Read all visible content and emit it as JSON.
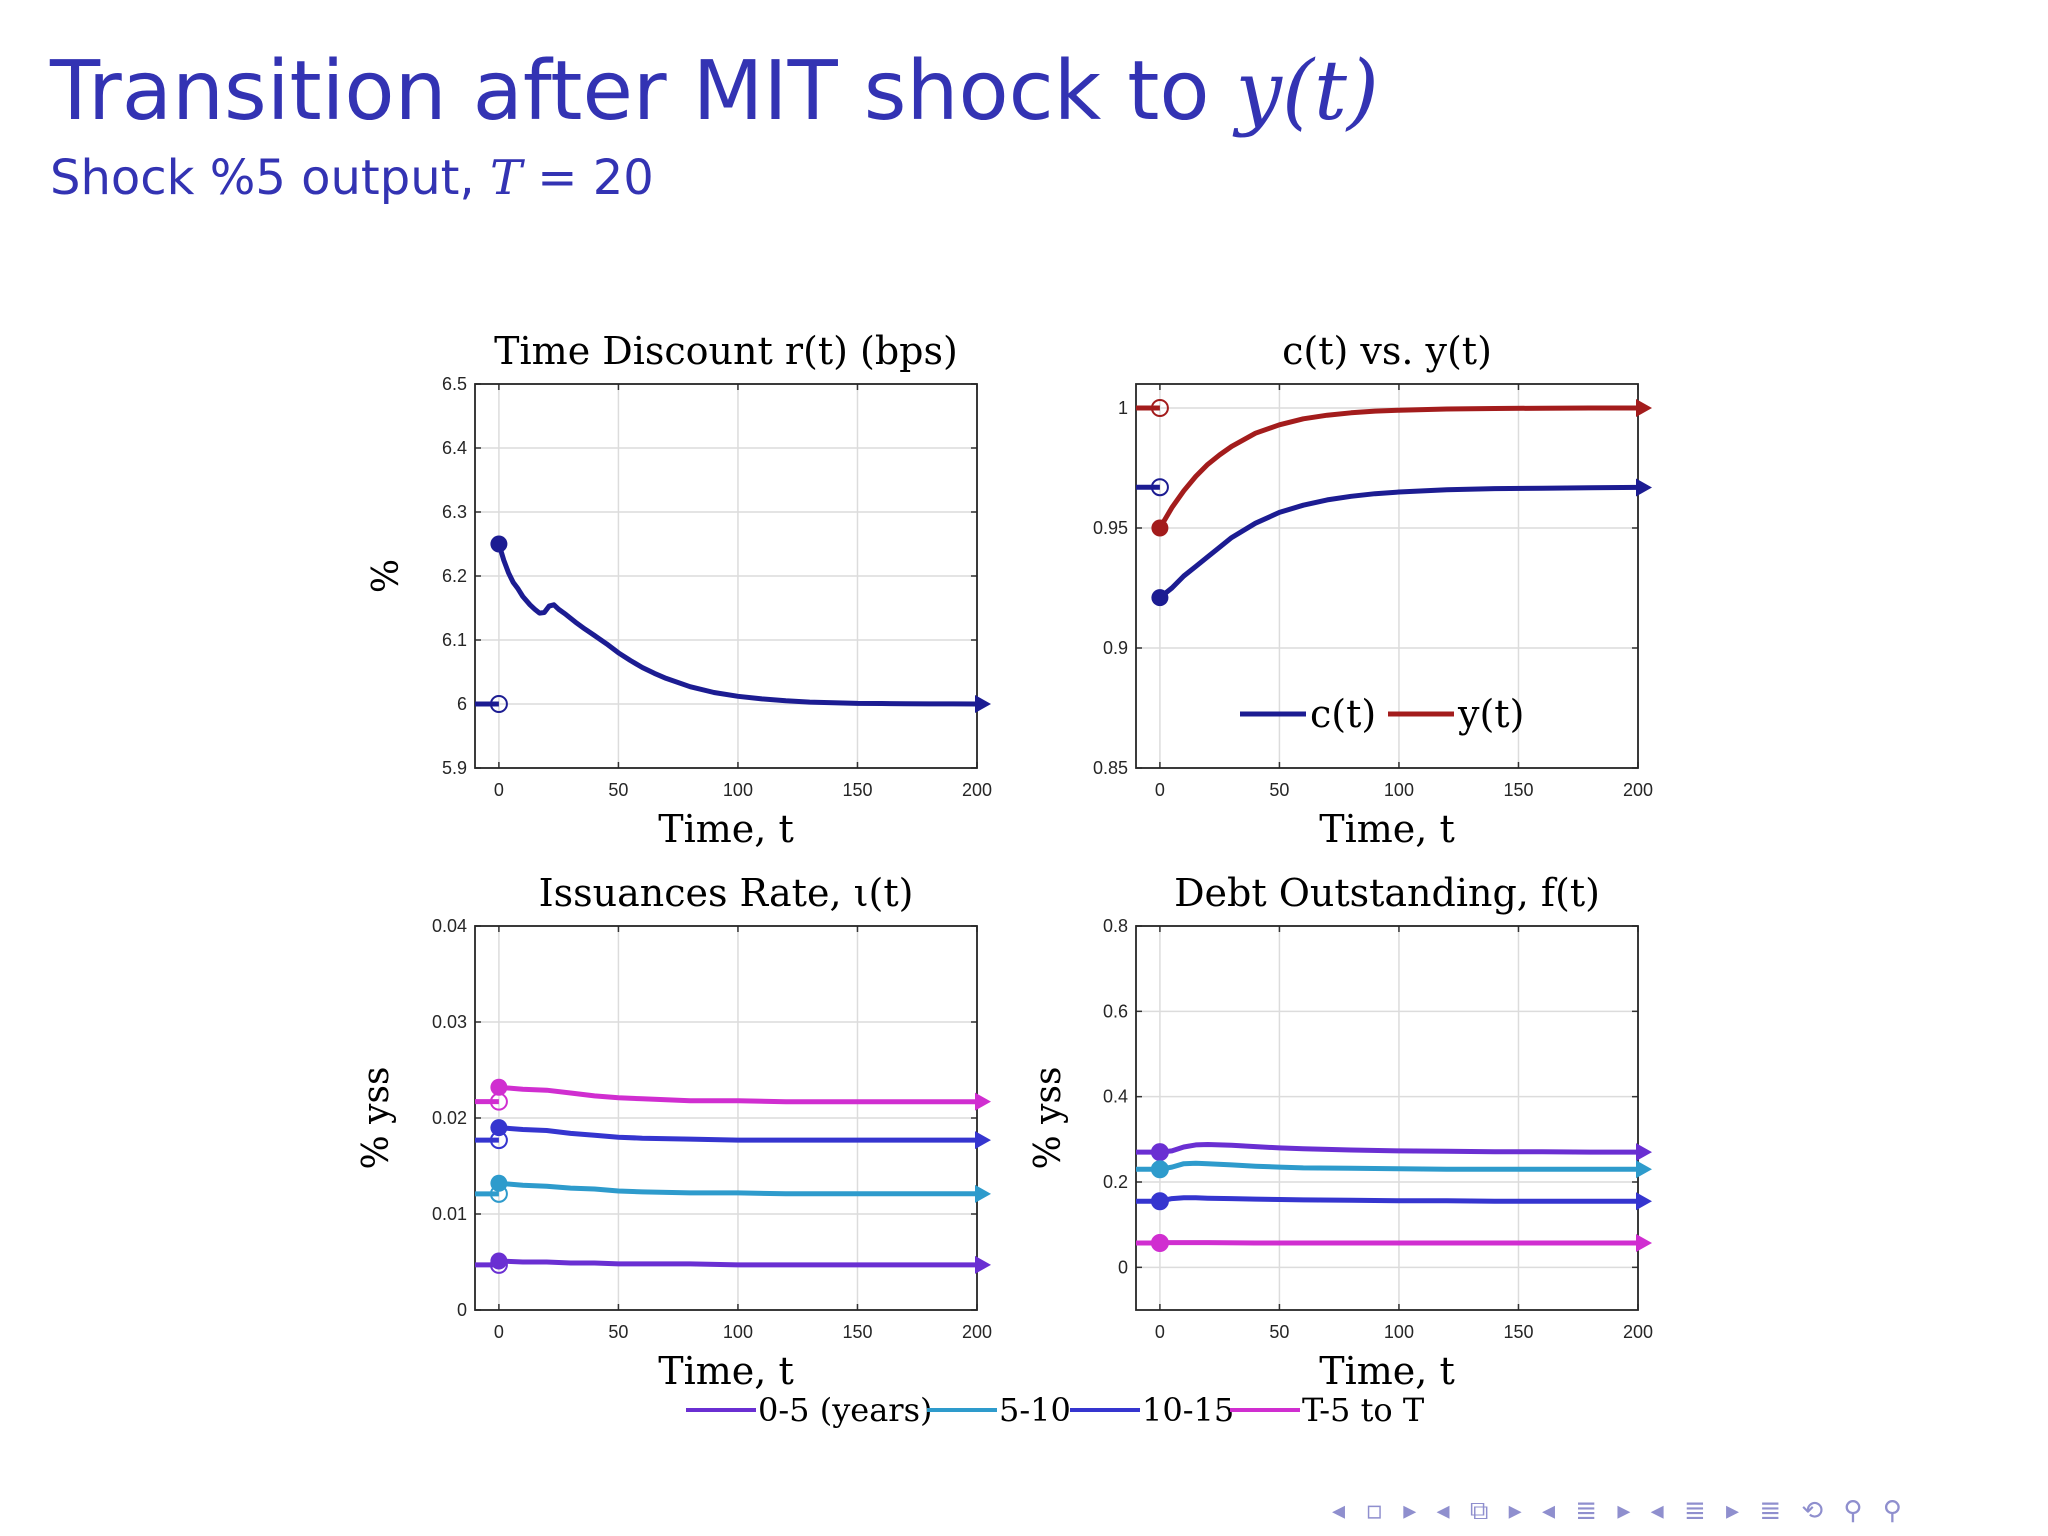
{
  "slide": {
    "title_main": "Transition after MIT shock to ",
    "title_math": "y(t)",
    "subtitle_main": "Shock %5 output, ",
    "subtitle_math_T": "T",
    "subtitle_eq": " = 20"
  },
  "nav_symbols": "◂ ▫ ▸ ◂ ⧉ ▸ ◂ ≣ ▸ ◂ ≣ ▸ ≣ ⟲ ⚲ ⚲",
  "colors": {
    "slide_title": "#3333b3",
    "navy": "#1c1c92",
    "dark_red": "#a31c1c",
    "bucket_0_5": "#6a2fd2",
    "bucket_5_10": "#2e9bcc",
    "bucket_10_15": "#3535cf",
    "bucket_T5_T": "#d02ed0",
    "grid": "#dcdcdc"
  },
  "legend_bottom": [
    "0-5 (years)",
    "5-10",
    "10-15",
    "T-5 to T"
  ],
  "chart_data": [
    {
      "id": "time-discount",
      "type": "line",
      "title": "Time Discount r(t) (bps)",
      "xlabel": "Time, t",
      "ylabel": "%",
      "xlim": [
        -10,
        200
      ],
      "ylim": [
        5.9,
        6.5
      ],
      "xticks": [
        0,
        50,
        100,
        150,
        200
      ],
      "xtick_labels": [
        "0",
        "50",
        "100",
        "150",
        "200"
      ],
      "yticks": [
        5.9,
        6.0,
        6.1,
        6.2,
        6.3,
        6.4,
        6.5
      ],
      "ytick_labels": [
        "5.9",
        "6",
        "6.1",
        "6.2",
        "6.3",
        "6.4",
        "6.5"
      ],
      "grid": true,
      "series": [
        {
          "color": "#1c1c92",
          "pre_value": 6.0,
          "x": [
            0,
            2,
            4,
            6,
            8,
            10,
            13,
            15,
            17,
            19,
            21,
            23,
            25,
            28,
            32,
            36,
            40,
            45,
            50,
            55,
            60,
            65,
            70,
            80,
            90,
            100,
            110,
            120,
            130,
            140,
            150,
            160,
            170,
            180,
            190,
            200
          ],
          "y": [
            6.25,
            6.225,
            6.205,
            6.19,
            6.18,
            6.168,
            6.155,
            6.148,
            6.142,
            6.143,
            6.153,
            6.155,
            6.148,
            6.14,
            6.128,
            6.117,
            6.107,
            6.094,
            6.08,
            6.068,
            6.057,
            6.048,
            6.04,
            6.027,
            6.018,
            6.012,
            6.008,
            6.005,
            6.003,
            6.002,
            6.001,
            6.0008,
            6.0004,
            6.0002,
            6.0001,
            6.0
          ]
        }
      ]
    },
    {
      "id": "consumption-output",
      "type": "line",
      "title": "c(t) vs. y(t)",
      "xlabel": "Time, t",
      "ylabel": "",
      "xlim": [
        -10,
        200
      ],
      "ylim": [
        0.85,
        1.01
      ],
      "xticks": [
        0,
        50,
        100,
        150,
        200
      ],
      "xtick_labels": [
        "0",
        "50",
        "100",
        "150",
        "200"
      ],
      "yticks": [
        0.85,
        0.9,
        0.95,
        1.0
      ],
      "ytick_labels": [
        "0.85",
        "0.9",
        "0.95",
        "1"
      ],
      "grid": true,
      "legend": {
        "entries": [
          "c(t)",
          "y(t)"
        ],
        "placement": "bottom-center"
      },
      "series": [
        {
          "name": "c(t)",
          "color": "#1c1c92",
          "pre_value": 0.967,
          "x": [
            0,
            5,
            10,
            15,
            20,
            25,
            30,
            40,
            50,
            60,
            70,
            80,
            90,
            100,
            120,
            140,
            160,
            180,
            200
          ],
          "y": [
            0.921,
            0.925,
            0.93,
            0.934,
            0.938,
            0.942,
            0.946,
            0.952,
            0.9565,
            0.9595,
            0.9617,
            0.9632,
            0.9643,
            0.965,
            0.9659,
            0.9664,
            0.9666,
            0.9668,
            0.9669
          ]
        },
        {
          "name": "y(t)",
          "color": "#a31c1c",
          "pre_value": 1.0,
          "x": [
            0,
            5,
            10,
            15,
            20,
            25,
            30,
            40,
            50,
            60,
            70,
            80,
            90,
            100,
            120,
            140,
            160,
            180,
            200
          ],
          "y": [
            0.95,
            0.9585,
            0.9655,
            0.9715,
            0.9765,
            0.9805,
            0.984,
            0.9895,
            0.993,
            0.9955,
            0.997,
            0.998,
            0.9987,
            0.9991,
            0.9996,
            0.9998,
            0.9999,
            1.0,
            1.0
          ]
        }
      ]
    },
    {
      "id": "issuance-rate",
      "type": "line",
      "title": "Issuances Rate, ι(t)",
      "xlabel": "Time, t",
      "ylabel": "% yss",
      "xlim": [
        -10,
        200
      ],
      "ylim": [
        0,
        0.04
      ],
      "xticks": [
        0,
        50,
        100,
        150,
        200
      ],
      "xtick_labels": [
        "0",
        "50",
        "100",
        "150",
        "200"
      ],
      "yticks": [
        0,
        0.01,
        0.02,
        0.03,
        0.04
      ],
      "ytick_labels": [
        "0",
        "0.01",
        "0.02",
        "0.03",
        "0.04"
      ],
      "grid": true,
      "series": [
        {
          "name": "0-5 (years)",
          "color": "#6a2fd2",
          "pre_value": 0.0047,
          "x": [
            0,
            10,
            20,
            30,
            40,
            50,
            60,
            80,
            100,
            120,
            140,
            160,
            180,
            200
          ],
          "y": [
            0.0051,
            0.005,
            0.005,
            0.0049,
            0.0049,
            0.0048,
            0.0048,
            0.0048,
            0.0047,
            0.0047,
            0.0047,
            0.0047,
            0.0047,
            0.0047
          ]
        },
        {
          "name": "5-10",
          "color": "#2e9bcc",
          "pre_value": 0.0121,
          "x": [
            0,
            10,
            20,
            30,
            40,
            50,
            60,
            80,
            100,
            120,
            140,
            160,
            180,
            200
          ],
          "y": [
            0.0132,
            0.013,
            0.0129,
            0.0127,
            0.0126,
            0.0124,
            0.0123,
            0.0122,
            0.0122,
            0.0121,
            0.0121,
            0.0121,
            0.0121,
            0.0121
          ]
        },
        {
          "name": "10-15",
          "color": "#3535cf",
          "pre_value": 0.0177,
          "x": [
            0,
            10,
            20,
            30,
            40,
            50,
            60,
            80,
            100,
            120,
            140,
            160,
            180,
            200
          ],
          "y": [
            0.019,
            0.0188,
            0.0187,
            0.0184,
            0.0182,
            0.018,
            0.0179,
            0.0178,
            0.0177,
            0.0177,
            0.0177,
            0.0177,
            0.0177,
            0.0177
          ]
        },
        {
          "name": "T-5 to T",
          "color": "#d02ed0",
          "pre_value": 0.0217,
          "x": [
            0,
            10,
            20,
            30,
            40,
            50,
            60,
            80,
            100,
            120,
            140,
            160,
            180,
            200
          ],
          "y": [
            0.0232,
            0.023,
            0.0229,
            0.0226,
            0.0223,
            0.0221,
            0.022,
            0.0218,
            0.0218,
            0.0217,
            0.0217,
            0.0217,
            0.0217,
            0.0217
          ]
        }
      ]
    },
    {
      "id": "debt-outstanding",
      "type": "line",
      "title": "Debt Outstanding, f(t)",
      "xlabel": "Time, t",
      "ylabel": "% yss",
      "xlim": [
        -10,
        200
      ],
      "ylim": [
        -0.1,
        0.8
      ],
      "xticks": [
        0,
        50,
        100,
        150,
        200
      ],
      "xtick_labels": [
        "0",
        "50",
        "100",
        "150",
        "200"
      ],
      "yticks": [
        0,
        0.2,
        0.4,
        0.6,
        0.8
      ],
      "ytick_labels": [
        "0",
        "0.2",
        "0.4",
        "0.6",
        "0.8"
      ],
      "grid": true,
      "series": [
        {
          "name": "0-5 (years)",
          "color": "#6a2fd2",
          "pre_value": 0.27,
          "x": [
            0,
            5,
            10,
            15,
            20,
            30,
            40,
            50,
            60,
            80,
            100,
            120,
            140,
            160,
            180,
            200
          ],
          "y": [
            0.27,
            0.273,
            0.282,
            0.287,
            0.288,
            0.286,
            0.283,
            0.28,
            0.278,
            0.275,
            0.273,
            0.272,
            0.271,
            0.271,
            0.27,
            0.27
          ]
        },
        {
          "name": "5-10",
          "color": "#2e9bcc",
          "pre_value": 0.23,
          "x": [
            0,
            5,
            10,
            15,
            20,
            30,
            40,
            50,
            60,
            80,
            100,
            120,
            140,
            160,
            180,
            200
          ],
          "y": [
            0.23,
            0.235,
            0.243,
            0.244,
            0.243,
            0.24,
            0.237,
            0.235,
            0.233,
            0.232,
            0.231,
            0.23,
            0.23,
            0.23,
            0.23,
            0.23
          ]
        },
        {
          "name": "10-15",
          "color": "#3535cf",
          "pre_value": 0.155,
          "x": [
            0,
            5,
            10,
            15,
            20,
            30,
            40,
            50,
            60,
            80,
            100,
            120,
            140,
            160,
            180,
            200
          ],
          "y": [
            0.155,
            0.161,
            0.163,
            0.163,
            0.162,
            0.161,
            0.16,
            0.159,
            0.158,
            0.157,
            0.156,
            0.156,
            0.155,
            0.155,
            0.155,
            0.155
          ]
        },
        {
          "name": "T-5 to T",
          "color": "#d02ed0",
          "pre_value": 0.057,
          "x": [
            0,
            10,
            20,
            40,
            60,
            80,
            100,
            120,
            140,
            160,
            180,
            200
          ],
          "y": [
            0.058,
            0.058,
            0.058,
            0.057,
            0.057,
            0.057,
            0.057,
            0.057,
            0.057,
            0.057,
            0.057,
            0.057
          ]
        }
      ]
    }
  ]
}
